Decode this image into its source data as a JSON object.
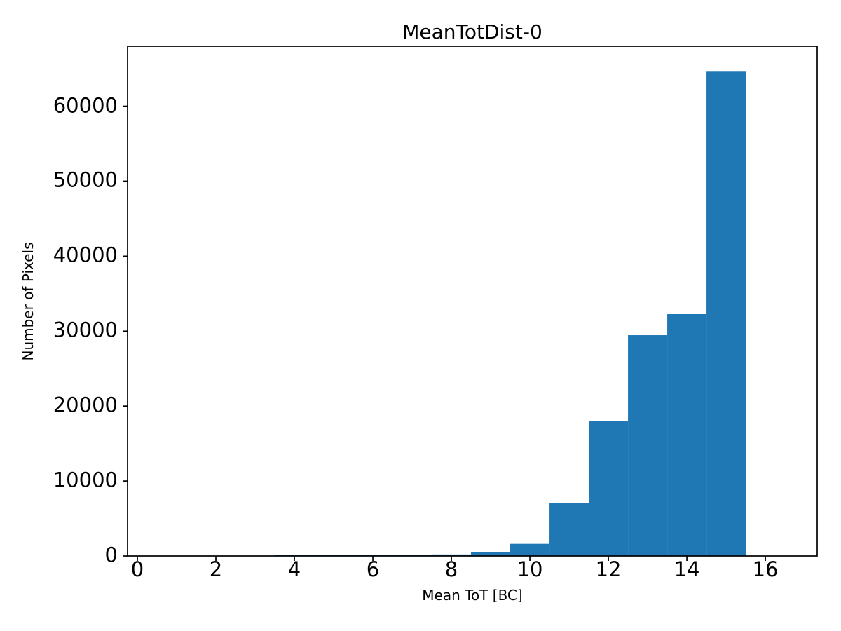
{
  "figure": {
    "title": "MeanTotDist-0",
    "xlabel": "Mean ToT [BC]",
    "ylabel": "Number of Pixels"
  },
  "chart_data": {
    "type": "bar",
    "subtype": "histogram",
    "title": "MeanTotDist-0",
    "xlabel": "Mean ToT [BC]",
    "ylabel": "Number of Pixels",
    "bar_color": "#1f77b4",
    "background_color": "#ffffff",
    "spine_color": "#000000",
    "grid": false,
    "legend_position": "none",
    "bin_edges": [
      3.5,
      4.5,
      5.5,
      6.5,
      7.5,
      8.5,
      9.5,
      10.5,
      11.5,
      12.5,
      13.5,
      14.5,
      15.5
    ],
    "counts": [
      150,
      150,
      150,
      150,
      200,
      470,
      1620,
      7110,
      18050,
      29460,
      32270,
      64700
    ],
    "x_ticks": [
      0,
      2,
      4,
      6,
      8,
      10,
      12,
      14,
      16
    ],
    "y_ticks": [
      0,
      10000,
      20000,
      30000,
      40000,
      50000,
      60000
    ],
    "xlim": [
      -0.25,
      17.32
    ],
    "ylim": [
      0,
      68000
    ]
  }
}
